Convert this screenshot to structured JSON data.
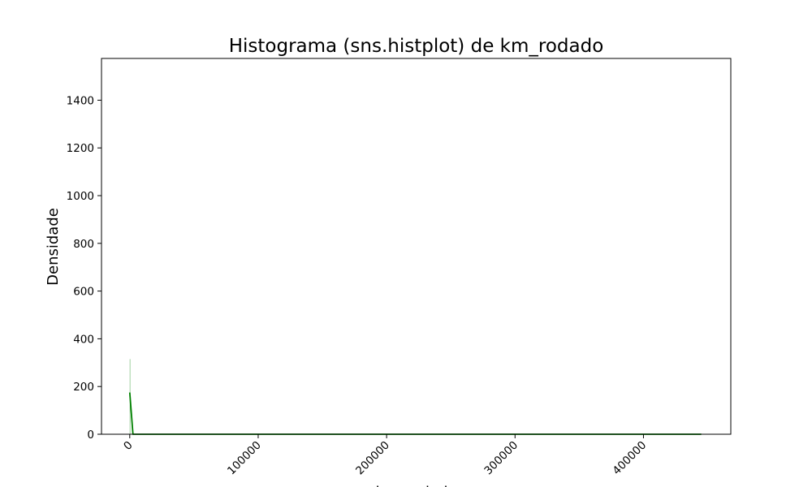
{
  "chart_data": {
    "type": "bar",
    "title": "Histograma (sns.histplot) de km_rodado",
    "xlabel": "km_rodado",
    "ylabel": "Densidade",
    "xlim": [
      -22000,
      468000
    ],
    "ylim": [
      0,
      1575
    ],
    "x_ticks": [
      0,
      100000,
      200000,
      300000,
      400000
    ],
    "x_tick_labels": [
      "0",
      "100000",
      "200000",
      "300000",
      "400000"
    ],
    "y_ticks": [
      0,
      200,
      400,
      600,
      800,
      1000,
      1200,
      1400
    ],
    "y_tick_labels": [
      "0",
      "200",
      "400",
      "600",
      "800",
      "1000",
      "1200",
      "1400"
    ],
    "x_tick_rotation_deg": -45,
    "grid": false,
    "legend": "none",
    "bars": [
      {
        "x0": 0,
        "x1": 300,
        "value": 315
      }
    ],
    "kde": {
      "x": [
        0,
        2500,
        10000,
        50000,
        100000,
        200000,
        300000,
        400000,
        445000
      ],
      "y": [
        175,
        0,
        0,
        0,
        0,
        0,
        0,
        0,
        0
      ]
    },
    "colors": {
      "bar_fill": "#52a852",
      "kde_line": "#008000",
      "axes": "#000000"
    }
  }
}
